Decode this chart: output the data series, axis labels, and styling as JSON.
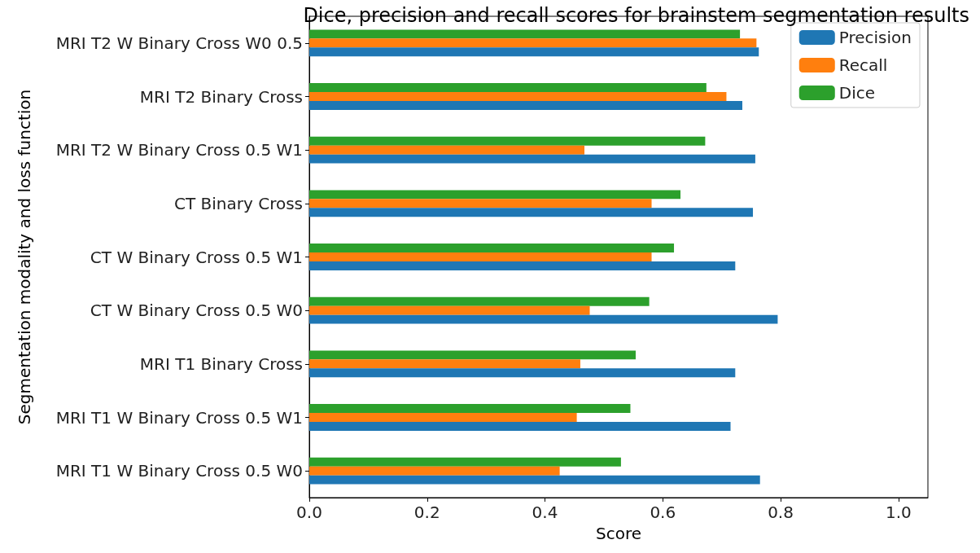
{
  "chart_data": {
    "type": "bar",
    "orientation": "horizontal",
    "title": "Dice, precision and recall scores for brainstem segmentation results",
    "xlabel": "Score",
    "ylabel": "Segmentation modality and loss function",
    "categories": [
      "MRI T2 W Binary Cross W0 0.5",
      "MRI T2 Binary Cross",
      "MRI T2 W Binary Cross 0.5 W1",
      "CT Binary Cross",
      "CT W Binary Cross 0.5 W1",
      "CT W Binary Cross 0.5 W0",
      "MRI T1 Binary Cross",
      "MRI T1 W Binary Cross 0.5 W1",
      "MRI T1 W Binary Cross 0.5 W0"
    ],
    "series": [
      {
        "name": "Precision",
        "color": "#1f77b4",
        "values": [
          0.763,
          0.735,
          0.757,
          0.753,
          0.723,
          0.795,
          0.723,
          0.715,
          0.765
        ]
      },
      {
        "name": "Recall",
        "color": "#ff7f0e",
        "values": [
          0.759,
          0.708,
          0.467,
          0.581,
          0.581,
          0.476,
          0.46,
          0.454,
          0.425
        ]
      },
      {
        "name": "Dice",
        "color": "#2ca02c",
        "values": [
          0.731,
          0.674,
          0.672,
          0.63,
          0.619,
          0.577,
          0.554,
          0.545,
          0.529
        ]
      }
    ],
    "xlim": [
      0,
      1.05
    ],
    "xticks": [
      {
        "value": 0,
        "label": "0.0"
      },
      0.2,
      0.4,
      0.6,
      0.8,
      {
        "value": 1,
        "label": "1.0"
      }
    ],
    "grid": false,
    "legend": "top right"
  }
}
